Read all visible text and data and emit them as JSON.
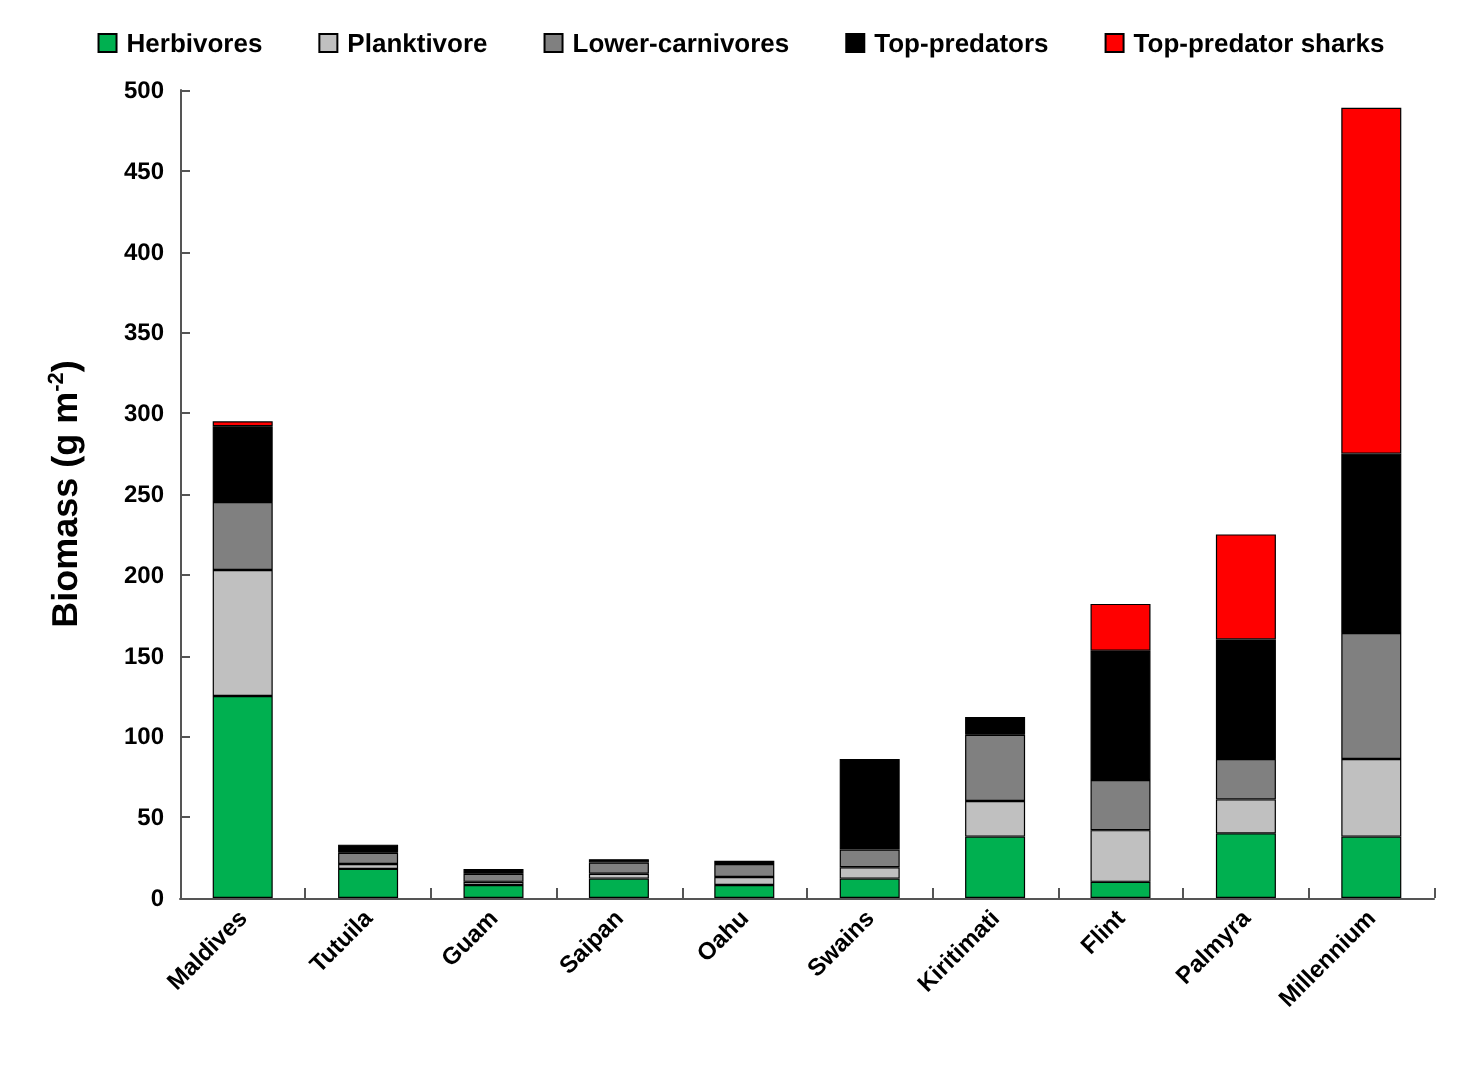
{
  "chart_data": {
    "type": "bar",
    "stacked": true,
    "ylabel": "Biomass (g m$^{-2}$)",
    "categories": [
      "Maldives",
      "Tutuila",
      "Guam",
      "Saipan",
      "Oahu",
      "Swains",
      "Kiritimati",
      "Flint",
      "Palmyra",
      "Millennium"
    ],
    "series": [
      {
        "name": "Herbivores",
        "color": "#00b050",
        "values": [
          125,
          18,
          8,
          12,
          8,
          12,
          38,
          10,
          40,
          38
        ]
      },
      {
        "name": "Planktivore",
        "color": "#c0c0c0",
        "values": [
          78,
          3,
          2,
          3,
          5,
          7,
          22,
          32,
          21,
          48
        ]
      },
      {
        "name": "Lower-carnivores",
        "color": "#808080",
        "values": [
          42,
          7,
          5,
          7,
          8,
          11,
          41,
          31,
          25,
          78
        ]
      },
      {
        "name": "Top-predators",
        "color": "#000000",
        "values": [
          47,
          5,
          3,
          2,
          2,
          56,
          11,
          80,
          74,
          111
        ]
      },
      {
        "name": "Top-predator sharks",
        "color": "#ff0000",
        "values": [
          3,
          null,
          null,
          null,
          null,
          null,
          null,
          29,
          65,
          214
        ]
      }
    ],
    "ylim": [
      0,
      500
    ],
    "yticks": [
      0,
      50,
      100,
      150,
      200,
      250,
      300,
      350,
      400,
      450,
      500
    ],
    "grid": false,
    "legend": "top"
  }
}
